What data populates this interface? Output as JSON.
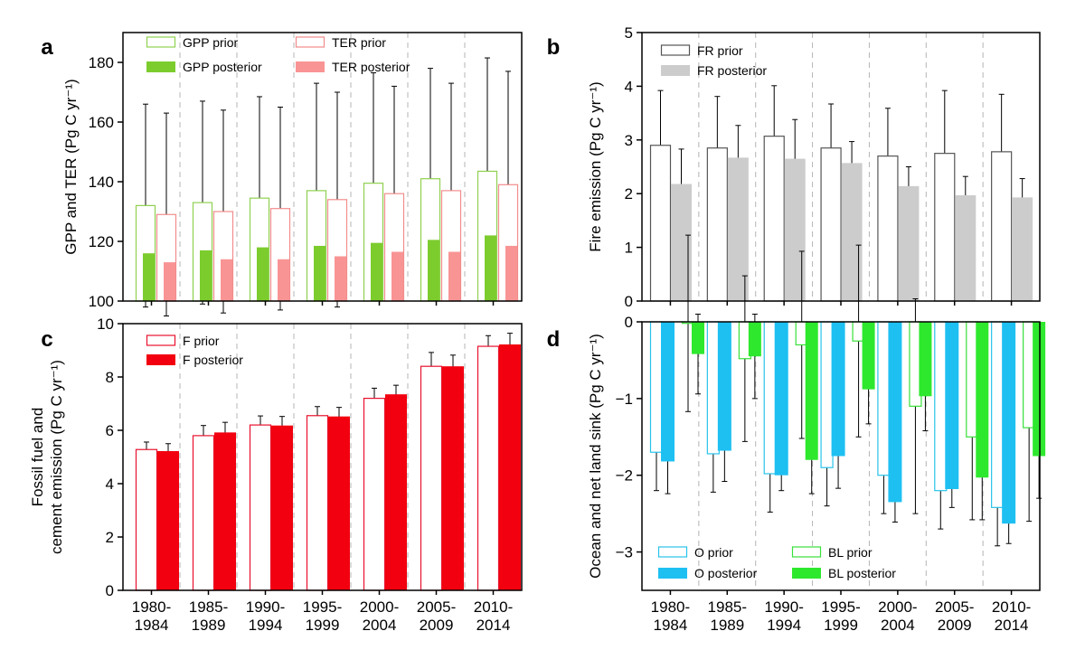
{
  "chart_data": [
    {
      "panel": "a",
      "type": "bar",
      "ylabel": "GPP and TER (Pg C yr⁻¹)",
      "ylim": [
        100,
        190
      ],
      "yticks": [
        100,
        120,
        140,
        160,
        180
      ],
      "categories": [
        "1980-\n1984",
        "1985-\n1989",
        "1990-\n1994",
        "1995-\n1999",
        "2000-\n2004",
        "2005-\n2009",
        "2010-\n2014"
      ],
      "series": [
        {
          "name": "GPP prior",
          "style": "hollow",
          "color": "#8fd14f",
          "values": [
            132,
            133,
            134.5,
            137,
            139.5,
            141,
            143.5
          ],
          "errors": [
            34,
            34,
            34,
            36,
            37,
            37,
            38
          ]
        },
        {
          "name": "GPP posterior",
          "style": "filled",
          "color": "#7ccc2e",
          "values": [
            116,
            117,
            118,
            118.5,
            119.5,
            120.5,
            122
          ],
          "errors": [
            12,
            12,
            12,
            12,
            12,
            12,
            12
          ]
        },
        {
          "name": "TER prior",
          "style": "hollow",
          "color": "#f28c8c",
          "values": [
            129,
            130,
            131,
            134,
            136,
            137,
            139
          ],
          "errors": [
            34,
            34,
            34,
            36,
            36,
            36,
            38
          ]
        },
        {
          "name": "TER posterior",
          "style": "filled",
          "color": "#f99494",
          "values": [
            113,
            114,
            114,
            115,
            116.5,
            116.5,
            118.5
          ],
          "errors": [
            12,
            12,
            12,
            12,
            12,
            12,
            12
          ]
        }
      ],
      "legend": {
        "position": "top",
        "columns": 2
      }
    },
    {
      "panel": "b",
      "type": "bar",
      "ylabel": "Fire emission (Pg C yr⁻¹)",
      "ylim": [
        0,
        5
      ],
      "yticks": [
        0,
        1,
        2,
        3,
        4,
        5
      ],
      "categories": [
        "1980-\n1984",
        "1985-\n1989",
        "1990-\n1994",
        "1995-\n1999",
        "2000-\n2004",
        "2005-\n2009",
        "2010-\n2014"
      ],
      "series": [
        {
          "name": "FR prior",
          "style": "hollow",
          "color": "#555555",
          "values": [
            2.9,
            2.85,
            3.07,
            2.85,
            2.7,
            2.75,
            2.78
          ],
          "errors": [
            1.02,
            0.96,
            0.94,
            0.82,
            0.89,
            1.17,
            1.07
          ]
        },
        {
          "name": "FR posterior",
          "style": "filled",
          "color": "#cccccc",
          "values": [
            2.18,
            2.67,
            2.65,
            2.57,
            2.14,
            1.97,
            1.93
          ],
          "errors": [
            0.65,
            0.6,
            0.73,
            0.4,
            0.36,
            0.35,
            0.35
          ]
        }
      ],
      "legend": {
        "position": "top-left",
        "columns": 1
      }
    },
    {
      "panel": "c",
      "type": "bar",
      "ylabel": "Fossil fuel and\ncement emission (Pg C yr⁻¹)",
      "ylim": [
        0,
        10
      ],
      "yticks": [
        0,
        2,
        4,
        6,
        8,
        10
      ],
      "categories": [
        "1980-\n1984",
        "1985-\n1989",
        "1990-\n1994",
        "1995-\n1999",
        "2000-\n2004",
        "2005-\n2009",
        "2010-\n2014"
      ],
      "series": [
        {
          "name": "F prior",
          "style": "hollow",
          "color": "#e8112d",
          "values": [
            5.28,
            5.8,
            6.2,
            6.55,
            7.2,
            8.4,
            9.15
          ],
          "errors": [
            0.28,
            0.38,
            0.34,
            0.34,
            0.38,
            0.52,
            0.4
          ]
        },
        {
          "name": "F posterior",
          "style": "filled",
          "color": "#f2000f",
          "values": [
            5.22,
            5.92,
            6.18,
            6.52,
            7.35,
            8.4,
            9.22
          ],
          "errors": [
            0.28,
            0.38,
            0.34,
            0.34,
            0.34,
            0.42,
            0.42
          ]
        }
      ],
      "legend": {
        "position": "top-left",
        "columns": 1
      }
    },
    {
      "panel": "d",
      "type": "bar",
      "ylabel": "Ocean and net land sink (Pg C yr⁻¹)",
      "ylim": [
        -3.5,
        0
      ],
      "yticks": [
        -3,
        -2,
        -1,
        0
      ],
      "categories": [
        "1980-\n1984",
        "1985-\n1989",
        "1990-\n1994",
        "1995-\n1999",
        "2000-\n2004",
        "2005-\n2009",
        "2010-\n2014"
      ],
      "series": [
        {
          "name": "O prior",
          "style": "hollow",
          "color": "#29c3ea",
          "values": [
            -1.7,
            -1.72,
            -1.98,
            -1.9,
            -2.0,
            -2.2,
            -2.42
          ],
          "errors": [
            0.5,
            0.5,
            0.5,
            0.5,
            0.5,
            0.5,
            0.5
          ]
        },
        {
          "name": "O posterior",
          "style": "filled",
          "color": "#1ec0f2",
          "values": [
            -1.82,
            -1.68,
            -2.0,
            -1.75,
            -2.35,
            -2.18,
            -2.63
          ],
          "errors": [
            0.42,
            0.4,
            0.2,
            0.42,
            0.26,
            0.24,
            0.26
          ]
        },
        {
          "name": "BL prior",
          "style": "hollow",
          "color": "#39e03a",
          "values": [
            -0.02,
            -0.48,
            -0.3,
            -0.25,
            -1.1,
            -1.5,
            -1.38
          ],
          "errors": [
            1.15,
            1.08,
            1.22,
            1.25,
            1.4,
            1.08,
            1.22
          ]
        },
        {
          "name": "BL posterior",
          "style": "filled",
          "color": "#2ee82e",
          "values": [
            -0.42,
            -0.45,
            -1.8,
            -0.88,
            -0.97,
            -2.03,
            -1.75
          ],
          "errors": [
            0.52,
            0.55,
            0.44,
            0.45,
            0.45,
            0.55,
            0.55
          ]
        }
      ],
      "legend": {
        "position": "bottom",
        "columns": 2
      }
    }
  ]
}
